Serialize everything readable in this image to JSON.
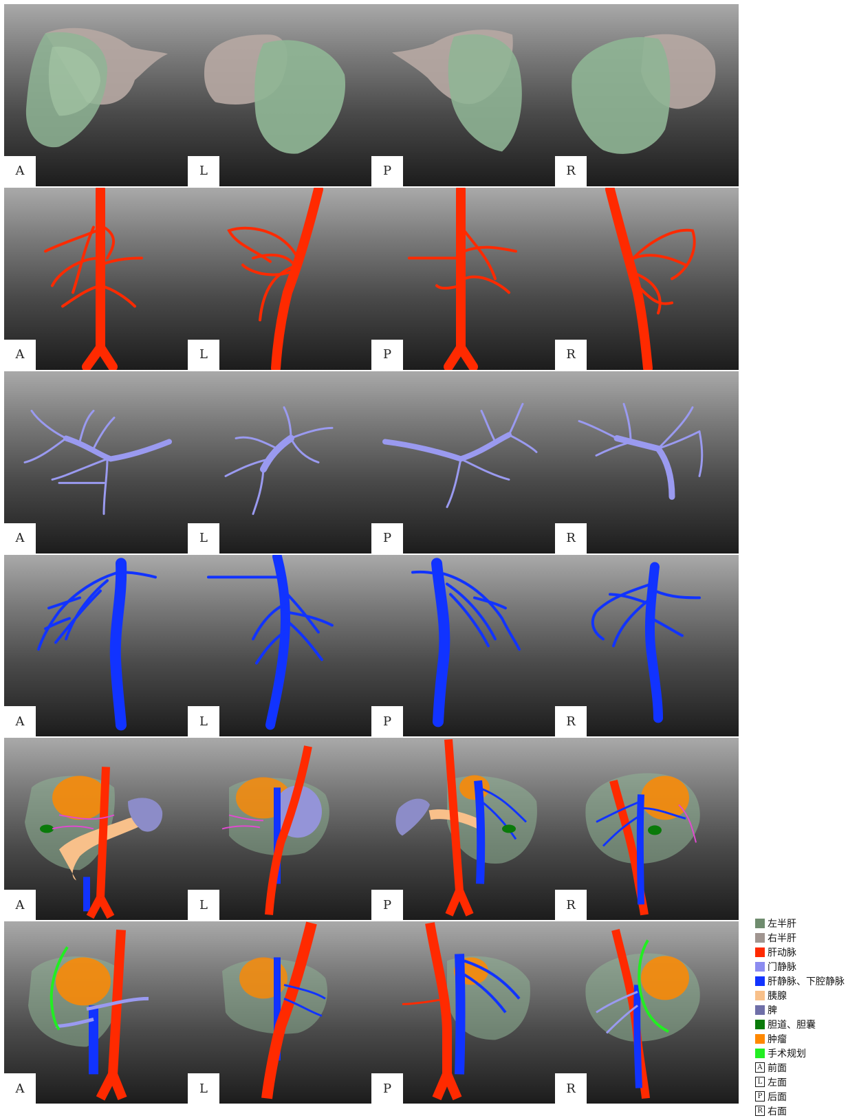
{
  "views": [
    "A",
    "L",
    "P",
    "R"
  ],
  "rows": [
    {
      "id": "liver"
    },
    {
      "id": "hepatic-artery"
    },
    {
      "id": "portal-vein"
    },
    {
      "id": "hepatic-vein"
    },
    {
      "id": "composite"
    },
    {
      "id": "surgical-plan"
    }
  ],
  "legend": {
    "items": [
      {
        "label": "左半肝",
        "color": "#6f8c6e"
      },
      {
        "label": "右半肝",
        "color": "#a09590"
      },
      {
        "label": "肝动脉",
        "color": "#ff2a00"
      },
      {
        "label": "门静脉",
        "color": "#8c8cf0"
      },
      {
        "label": "肝静脉、下腔静脉",
        "color": "#1133ff"
      },
      {
        "label": "胰腺",
        "color": "#f8c08a"
      },
      {
        "label": "脾",
        "color": "#6f6fa8"
      },
      {
        "label": "胆道、胆囊",
        "color": "#0a7a0a"
      },
      {
        "label": "肿瘤",
        "color": "#ff8800"
      },
      {
        "label": "手术规划",
        "color": "#22ee22"
      }
    ],
    "views": [
      {
        "letter": "A",
        "label": "前面"
      },
      {
        "letter": "L",
        "label": "左面"
      },
      {
        "letter": "P",
        "label": "后面"
      },
      {
        "letter": "R",
        "label": "右面"
      }
    ]
  }
}
